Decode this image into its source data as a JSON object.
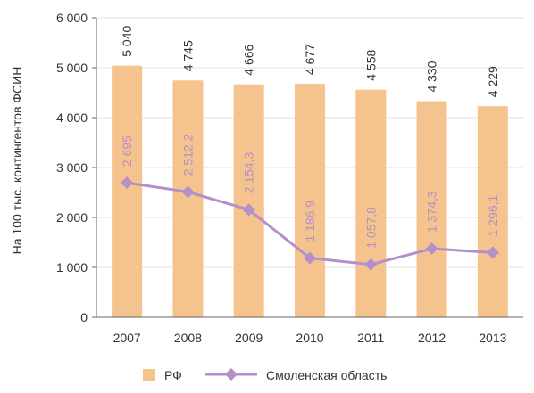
{
  "chart_data": {
    "type": "bar",
    "categories": [
      "2007",
      "2008",
      "2009",
      "2010",
      "2011",
      "2012",
      "2013"
    ],
    "ylabel": "На 100 тыс. контингентов ФСИН",
    "ylim": [
      0,
      6000
    ],
    "yticks": [
      0,
      1000,
      2000,
      3000,
      4000,
      5000,
      6000
    ],
    "ytick_labels": [
      "0",
      "1 000",
      "2 000",
      "3 000",
      "4 000",
      "5 000",
      "6 000"
    ],
    "grid": true,
    "legend_position": "bottom",
    "series": [
      {
        "name": "РФ",
        "type": "bar",
        "color": "#f5c48e",
        "values": [
          5040,
          4745,
          4666,
          4677,
          4558,
          4330,
          4229
        ],
        "labels": [
          "5 040",
          "4 745",
          "4 666",
          "4 677",
          "4 558",
          "4 330",
          "4 229"
        ]
      },
      {
        "name": "Смоленская область",
        "type": "line",
        "color": "#b48fc9",
        "values": [
          2695,
          2512.2,
          2154.3,
          1186.9,
          1057.8,
          1374.3,
          1296.1
        ],
        "labels": [
          "2 695",
          "2 512,2",
          "2 154,3",
          "1 186,9",
          "1 057,8",
          "1 374,3",
          "1 296,1"
        ]
      }
    ]
  }
}
